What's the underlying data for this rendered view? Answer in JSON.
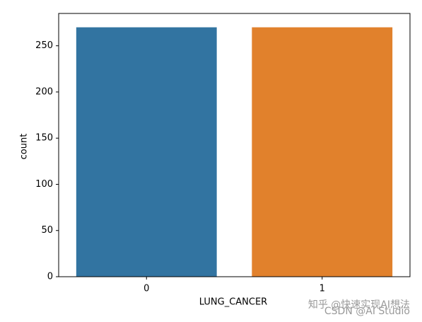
{
  "chart_data": {
    "type": "bar",
    "x_label": "LUNG_CANCER",
    "y_label": "count",
    "categories": [
      "0",
      "1"
    ],
    "values": [
      270,
      270
    ],
    "colors": [
      "#3274a1",
      "#e1812c"
    ],
    "ylim": [
      0,
      285
    ],
    "yticks": [
      0,
      50,
      100,
      150,
      200,
      250
    ]
  },
  "watermarks": [
    "知乎 @快速实现AI想法",
    "CSDN @AI Studio"
  ]
}
